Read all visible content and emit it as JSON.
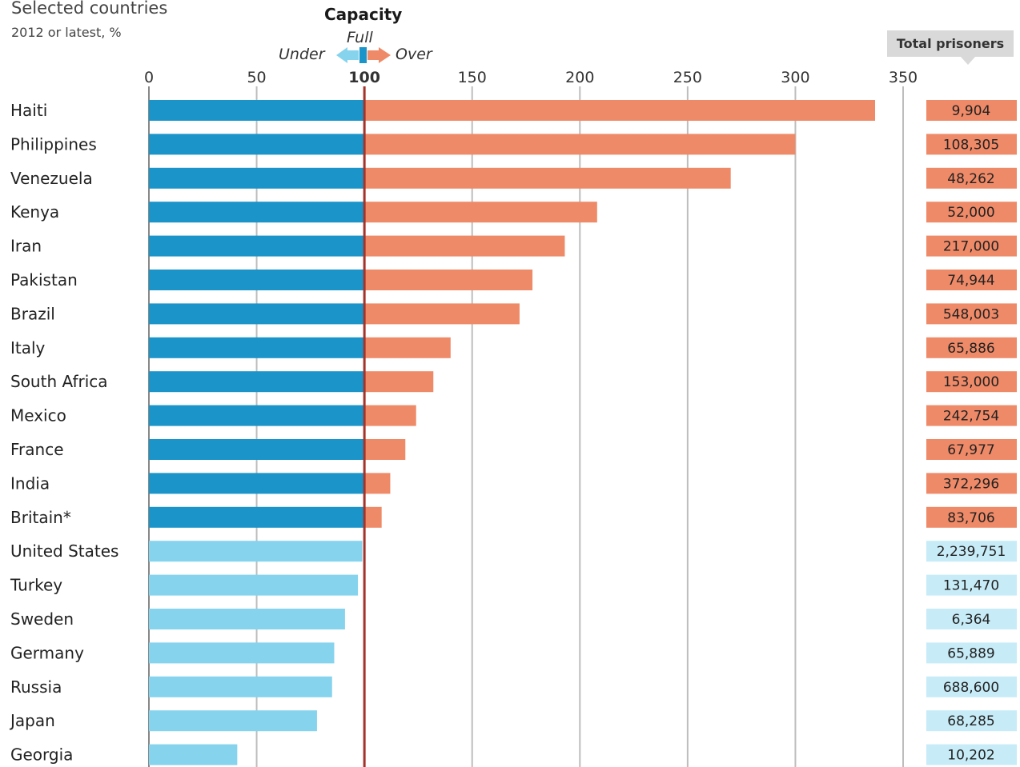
{
  "chart_data": {
    "type": "bar",
    "title": "",
    "subtitle_lines": [
      "Selected countries",
      "2012 or latest, %"
    ],
    "legend": {
      "title": "Capacity",
      "full_label": "Full",
      "under_label": "Under",
      "over_label": "Over"
    },
    "xticks": [
      "0",
      "50",
      "100",
      "150",
      "200",
      "250",
      "300",
      "350"
    ],
    "xlim": [
      0,
      350
    ],
    "reference_value": 100,
    "total_header": "Total prisoners",
    "colors": {
      "under_full": "#1a94c9",
      "under_partial": "#86d3ee",
      "over": "#ef8a68",
      "reference_line": "#a3342c",
      "grid": "#bdbdbd",
      "total_over_bg": "#ef8a68",
      "total_under_bg": "#c7ecf8"
    },
    "categories": [
      "Haiti",
      "Philippines",
      "Venezuela",
      "Kenya",
      "Iran",
      "Pakistan",
      "Brazil",
      "Italy",
      "South Africa",
      "Mexico",
      "France",
      "India",
      "Britain*",
      "United States",
      "Turkey",
      "Sweden",
      "Germany",
      "Russia",
      "Japan",
      "Georgia"
    ],
    "values": [
      337,
      300,
      270,
      208,
      193,
      178,
      172,
      140,
      132,
      124,
      119,
      112,
      108,
      99,
      97,
      91,
      86,
      85,
      78,
      41
    ],
    "totals": [
      "9,904",
      "108,305",
      "48,262",
      "52,000",
      "217,000",
      "74,944",
      "548,003",
      "65,886",
      "153,000",
      "242,754",
      "67,977",
      "372,296",
      "83,706",
      "2,239,751",
      "131,470",
      "6,364",
      "65,889",
      "688,600",
      "68,285",
      "10,202"
    ]
  }
}
